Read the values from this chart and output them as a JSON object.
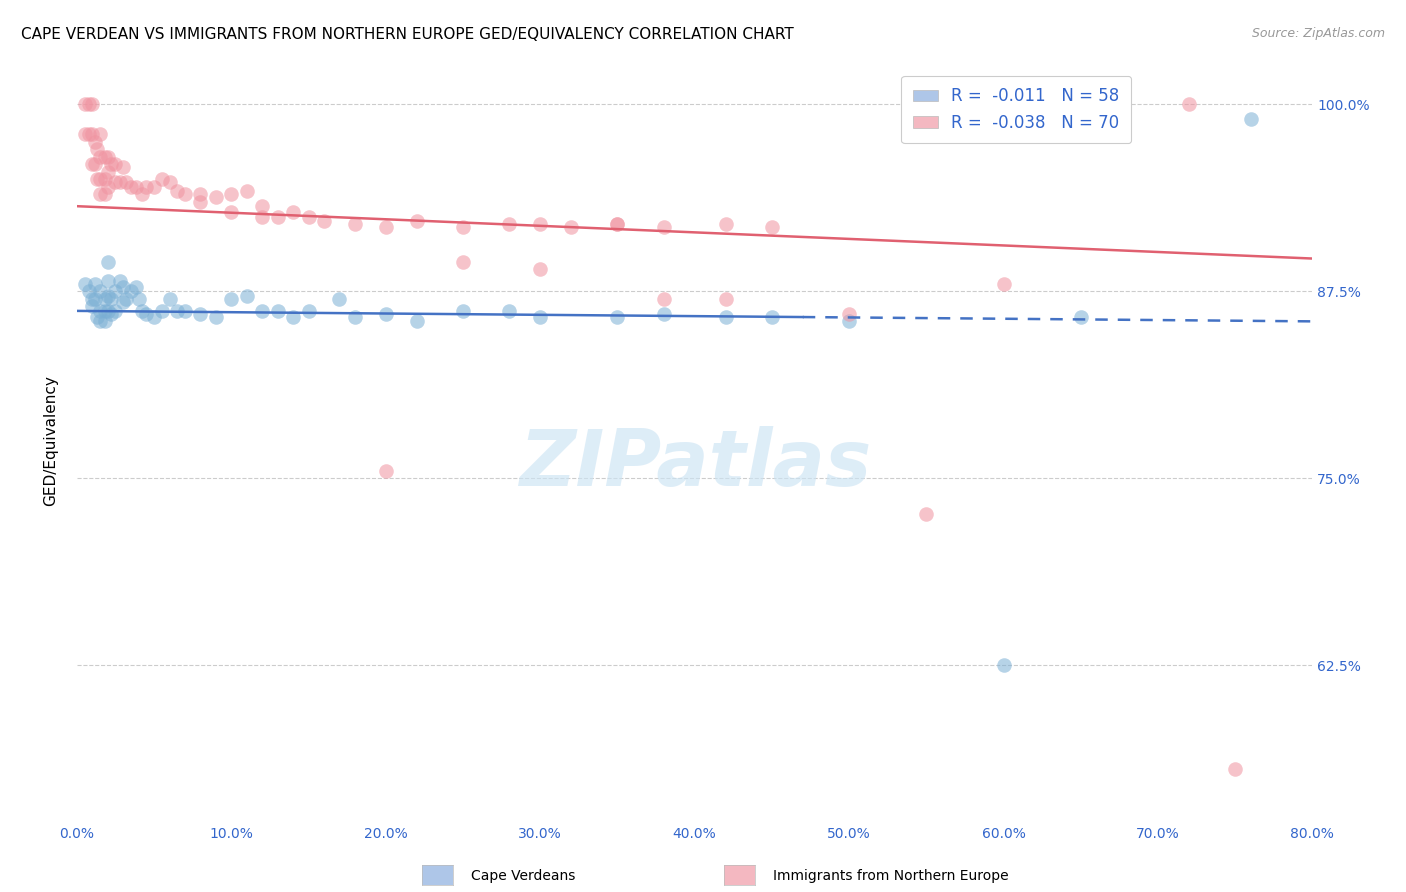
{
  "title": "CAPE VERDEAN VS IMMIGRANTS FROM NORTHERN EUROPE GED/EQUIVALENCY CORRELATION CHART",
  "source": "Source: ZipAtlas.com",
  "ylabel": "GED/Equivalency",
  "xlim": [
    0.0,
    0.8
  ],
  "ylim": [
    0.52,
    1.03
  ],
  "legend_blue_label": "R =  -0.011   N = 58",
  "legend_pink_label": "R =  -0.038   N = 70",
  "legend_blue_color": "#aec6e8",
  "legend_pink_color": "#f4b8c1",
  "scatter_blue_color": "#7bafd4",
  "scatter_pink_color": "#f093a0",
  "trend_blue_color": "#4472c4",
  "trend_pink_color": "#e06070",
  "watermark": "ZIPatlas",
  "trend_blue_x0": 0.0,
  "trend_blue_y0": 0.862,
  "trend_blue_x1": 0.8,
  "trend_blue_y1": 0.855,
  "trend_blue_solid_end": 0.47,
  "trend_pink_x0": 0.0,
  "trend_pink_y0": 0.932,
  "trend_pink_x1": 0.8,
  "trend_pink_y1": 0.897,
  "blue_x": [
    0.005,
    0.008,
    0.01,
    0.01,
    0.012,
    0.012,
    0.013,
    0.015,
    0.015,
    0.015,
    0.018,
    0.018,
    0.018,
    0.02,
    0.02,
    0.02,
    0.02,
    0.022,
    0.022,
    0.025,
    0.025,
    0.028,
    0.03,
    0.03,
    0.032,
    0.035,
    0.038,
    0.04,
    0.042,
    0.045,
    0.05,
    0.055,
    0.06,
    0.065,
    0.07,
    0.08,
    0.09,
    0.1,
    0.11,
    0.12,
    0.13,
    0.14,
    0.15,
    0.17,
    0.18,
    0.2,
    0.22,
    0.25,
    0.28,
    0.3,
    0.35,
    0.38,
    0.42,
    0.45,
    0.5,
    0.6,
    0.65,
    0.76
  ],
  "blue_y": [
    0.88,
    0.875,
    0.87,
    0.865,
    0.88,
    0.87,
    0.858,
    0.875,
    0.862,
    0.855,
    0.87,
    0.862,
    0.855,
    0.895,
    0.882,
    0.872,
    0.862,
    0.87,
    0.86,
    0.875,
    0.862,
    0.882,
    0.878,
    0.868,
    0.87,
    0.875,
    0.878,
    0.87,
    0.862,
    0.86,
    0.858,
    0.862,
    0.87,
    0.862,
    0.862,
    0.86,
    0.858,
    0.87,
    0.872,
    0.862,
    0.862,
    0.858,
    0.862,
    0.87,
    0.858,
    0.86,
    0.855,
    0.862,
    0.862,
    0.858,
    0.858,
    0.86,
    0.858,
    0.858,
    0.855,
    0.625,
    0.858,
    0.99
  ],
  "pink_x": [
    0.005,
    0.005,
    0.008,
    0.008,
    0.01,
    0.01,
    0.01,
    0.012,
    0.012,
    0.013,
    0.013,
    0.015,
    0.015,
    0.015,
    0.015,
    0.018,
    0.018,
    0.018,
    0.02,
    0.02,
    0.02,
    0.022,
    0.025,
    0.025,
    0.028,
    0.03,
    0.032,
    0.035,
    0.038,
    0.042,
    0.045,
    0.05,
    0.055,
    0.06,
    0.065,
    0.07,
    0.08,
    0.09,
    0.1,
    0.11,
    0.12,
    0.13,
    0.14,
    0.16,
    0.18,
    0.2,
    0.22,
    0.25,
    0.28,
    0.3,
    0.32,
    0.35,
    0.38,
    0.42,
    0.45,
    0.5,
    0.55,
    0.35,
    0.3,
    0.25,
    0.2,
    0.15,
    0.12,
    0.1,
    0.08,
    0.38,
    0.42,
    0.6,
    0.72,
    0.75
  ],
  "pink_y": [
    1.0,
    0.98,
    1.0,
    0.98,
    1.0,
    0.98,
    0.96,
    0.975,
    0.96,
    0.97,
    0.95,
    0.98,
    0.965,
    0.95,
    0.94,
    0.965,
    0.95,
    0.94,
    0.965,
    0.955,
    0.945,
    0.96,
    0.96,
    0.948,
    0.948,
    0.958,
    0.948,
    0.945,
    0.945,
    0.94,
    0.945,
    0.945,
    0.95,
    0.948,
    0.942,
    0.94,
    0.94,
    0.938,
    0.94,
    0.942,
    0.932,
    0.925,
    0.928,
    0.922,
    0.92,
    0.918,
    0.922,
    0.918,
    0.92,
    0.92,
    0.918,
    0.92,
    0.918,
    0.92,
    0.918,
    0.86,
    0.726,
    0.92,
    0.89,
    0.895,
    0.755,
    0.925,
    0.925,
    0.928,
    0.935,
    0.87,
    0.87,
    0.88,
    1.0,
    0.556
  ]
}
